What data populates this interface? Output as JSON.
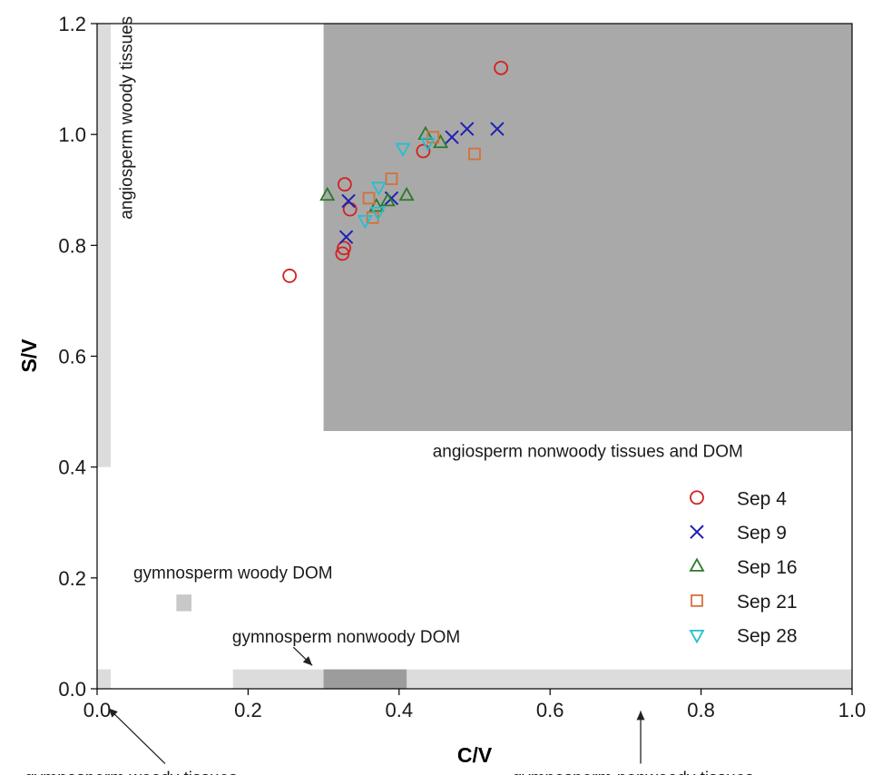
{
  "chart_data": {
    "type": "scatter",
    "xlabel": "C/V",
    "ylabel": "S/V",
    "xlim": [
      0.0,
      1.0
    ],
    "ylim": [
      0.0,
      1.2
    ],
    "xticks": [
      "0.0",
      "0.2",
      "0.4",
      "0.6",
      "0.8",
      "1.0"
    ],
    "yticks": [
      "0.0",
      "0.2",
      "0.4",
      "0.6",
      "0.8",
      "1.0",
      "1.2"
    ],
    "legend_position": "bottom-right",
    "colors": {
      "region_dark": "#a9a9a9",
      "region_light": "#dcdcdc",
      "region_mid": "#c8c8c8",
      "region_overlap": "#9c9c9c"
    },
    "regions": [
      {
        "name": "angiosperm nonwoody tissues and DOM",
        "x": [
          0.3,
          1.0
        ],
        "y": [
          0.465,
          1.2
        ],
        "shade": "dark"
      },
      {
        "name": "angiosperm woody tissues",
        "x": [
          0.0,
          0.018
        ],
        "y": [
          0.4,
          1.2
        ],
        "shade": "light"
      },
      {
        "name": "gymnosperm woody tissues",
        "x": [
          0.0,
          0.018
        ],
        "y": [
          0.0,
          0.035
        ],
        "shade": "light"
      },
      {
        "name": "gymnosperm nonwoody tissues",
        "x": [
          0.18,
          1.0
        ],
        "y": [
          0.0,
          0.035
        ],
        "shade": "light"
      },
      {
        "name": "gymnosperm nonwoody DOM",
        "x": [
          0.3,
          0.41
        ],
        "y": [
          0.0,
          0.035
        ],
        "shade": "overlap"
      },
      {
        "name": "gymnosperm woody DOM",
        "x": [
          0.105,
          0.125
        ],
        "y": [
          0.14,
          0.17
        ],
        "shade": "mid"
      }
    ],
    "annotations": [
      {
        "text": "angiosperm woody tissues",
        "anchor_x": 0.04,
        "anchor_y": 1.03
      },
      {
        "text": "angiosperm nonwoody tissues and DOM",
        "anchor_x": 0.65,
        "anchor_y": 0.43
      },
      {
        "text": "gymnosperm woody DOM",
        "anchor_x": 0.18,
        "anchor_y": 0.21
      },
      {
        "text": "gymnosperm nonwoody DOM",
        "anchor_x": 0.33,
        "anchor_y": 0.095
      },
      {
        "text": "gymnosperm woody tissues",
        "anchor_x": 0.045,
        "anchor_y": -0.16
      },
      {
        "text": "gymnosperm nonwoody tissues",
        "anchor_x": 0.71,
        "anchor_y": -0.16
      }
    ],
    "series": [
      {
        "name": "Sep 4",
        "marker": "circle",
        "color": "#d42020",
        "points": [
          [
            0.255,
            0.745
          ],
          [
            0.325,
            0.785
          ],
          [
            0.327,
            0.795
          ],
          [
            0.328,
            0.91
          ],
          [
            0.335,
            0.865
          ],
          [
            0.432,
            0.97
          ],
          [
            0.535,
            1.12
          ]
        ]
      },
      {
        "name": "Sep 9",
        "marker": "x",
        "color": "#1f1fb4",
        "points": [
          [
            0.33,
            0.815
          ],
          [
            0.333,
            0.88
          ],
          [
            0.39,
            0.885
          ],
          [
            0.47,
            0.995
          ],
          [
            0.49,
            1.01
          ],
          [
            0.53,
            1.01
          ]
        ]
      },
      {
        "name": "Sep 16",
        "marker": "triangle-up",
        "color": "#2a7a2a",
        "points": [
          [
            0.305,
            0.89
          ],
          [
            0.37,
            0.87
          ],
          [
            0.385,
            0.88
          ],
          [
            0.41,
            0.89
          ],
          [
            0.435,
            1.0
          ],
          [
            0.455,
            0.985
          ]
        ]
      },
      {
        "name": "Sep 21",
        "marker": "square",
        "color": "#d4703a",
        "points": [
          [
            0.36,
            0.885
          ],
          [
            0.365,
            0.85
          ],
          [
            0.39,
            0.92
          ],
          [
            0.445,
            0.995
          ],
          [
            0.5,
            0.965
          ]
        ]
      },
      {
        "name": "Sep 28",
        "marker": "triangle-down",
        "color": "#22c0d0",
        "points": [
          [
            0.355,
            0.845
          ],
          [
            0.372,
            0.86
          ],
          [
            0.373,
            0.905
          ],
          [
            0.405,
            0.975
          ],
          [
            0.438,
            0.985
          ]
        ]
      }
    ]
  }
}
